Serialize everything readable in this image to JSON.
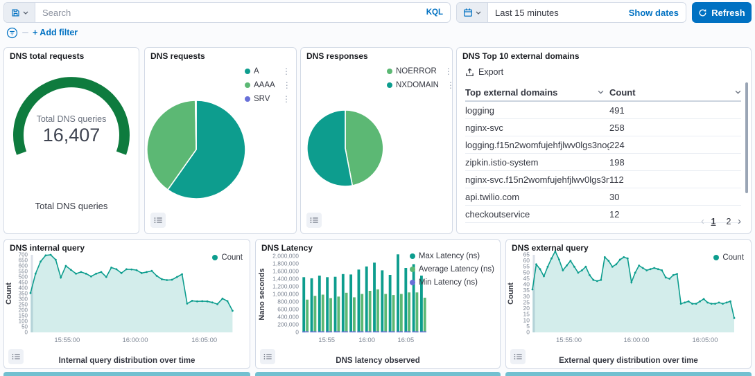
{
  "query_bar": {
    "search_placeholder": "Search",
    "kql_label": "KQL",
    "time_range": "Last 15 minutes",
    "show_dates_label": "Show dates",
    "refresh_label": "Refresh"
  },
  "filter_bar": {
    "add_filter_label": "+ Add filter"
  },
  "colors": {
    "teal": "#0d9d8e",
    "green": "#5cb874",
    "indigo": "#6870d8",
    "gauge_green": "#0e7b3e",
    "blue": "#0071c2",
    "axis_text": "#7d8694"
  },
  "chart_data": [
    {
      "type": "gauge",
      "title": "DNS total requests",
      "label": "Total DNS queries",
      "value": 16407,
      "value_display": "16,407",
      "bottom_label": "Total DNS queries",
      "color": "#0e7b3e",
      "fraction": 1.0
    },
    {
      "type": "pie",
      "title": "DNS requests",
      "slices": [
        {
          "label": "A",
          "value": 59.8,
          "color": "#0d9d8e"
        },
        {
          "label": "AAAA",
          "value": 39.9,
          "color": "#5cb874"
        },
        {
          "label": "SRV",
          "value": 0.3,
          "color": "#6870d8"
        }
      ]
    },
    {
      "type": "pie",
      "title": "DNS responses",
      "slices": [
        {
          "label": "NOERROR",
          "value": 47,
          "color": "#5cb874"
        },
        {
          "label": "NXDOMAIN",
          "value": 53,
          "color": "#0d9d8e"
        }
      ]
    },
    {
      "type": "table",
      "title": "DNS Top 10 external domains",
      "export_label": "Export",
      "columns": [
        "Top external domains",
        "Count"
      ],
      "rows": [
        [
          "logging",
          "491"
        ],
        [
          "nginx-svc",
          "258"
        ],
        [
          "logging.f15n2womfujehfjlwv0lgs3nog....",
          "224"
        ],
        [
          "zipkin.istio-system",
          "198"
        ],
        [
          "nginx-svc.f15n2womfujehfjlwv0lgs3no...",
          "112"
        ],
        [
          "api.twilio.com",
          "30"
        ],
        [
          "checkoutservice",
          "12"
        ]
      ],
      "pages": [
        "1",
        "2"
      ],
      "active_page": "1"
    },
    {
      "type": "area",
      "title": "DNS internal query",
      "ylabel": "Count",
      "xlabel": "Internal query distribution over time",
      "legend": [
        {
          "label": "Count",
          "color": "#0d9d8e"
        }
      ],
      "ylim": [
        0,
        700
      ],
      "ytick_step": 50,
      "xticks": [
        {
          "label": "15:55:00",
          "pos": 0.175
        },
        {
          "label": "16:00:00",
          "pos": 0.5
        },
        {
          "label": "16:05:00",
          "pos": 0.83
        }
      ],
      "values": [
        355,
        530,
        640,
        695,
        700,
        655,
        495,
        600,
        565,
        530,
        545,
        530,
        505,
        530,
        545,
        500,
        585,
        570,
        535,
        570,
        568,
        562,
        535,
        545,
        555,
        510,
        480,
        472,
        475,
        500,
        525,
        260,
        285,
        280,
        282,
        280,
        270,
        255,
        305,
        282,
        195
      ]
    },
    {
      "type": "bar",
      "title": "DNS Latency",
      "ylabel": "Nano seconds",
      "xlabel": "DNS latency observed",
      "ylim": [
        0,
        2000000
      ],
      "ytick_step": 200000,
      "xticks": [
        {
          "label": "15:55",
          "pos": 0.2
        },
        {
          "label": "16:00",
          "pos": 0.52
        },
        {
          "label": "16:05",
          "pos": 0.83
        }
      ],
      "series": [
        {
          "name": "Max Latency (ns)",
          "color": "#0d9d8e",
          "values": [
            1450000,
            1420000,
            1490000,
            1450000,
            1460000,
            1530000,
            1520000,
            1650000,
            1730000,
            1830000,
            1630000,
            1510000,
            2050000,
            1690000,
            1790000,
            1490000
          ]
        },
        {
          "name": "Average Latency (ns)",
          "color": "#5cb874",
          "values": [
            860000,
            960000,
            990000,
            900000,
            940000,
            1040000,
            920000,
            1010000,
            1090000,
            1130000,
            1010000,
            980000,
            1010000,
            1050000,
            1050000,
            910000
          ]
        },
        {
          "name": "Min Latency (ns)",
          "color": "#6870d8",
          "values": [
            15000,
            15000,
            15000,
            15000,
            15000,
            15000,
            15000,
            15000,
            15000,
            15000,
            15000,
            15000,
            15000,
            15000,
            15000,
            15000
          ]
        }
      ]
    },
    {
      "type": "area",
      "title": "DNS external query",
      "ylabel": "Count",
      "xlabel": "External query distribution over time",
      "legend": [
        {
          "label": "Count",
          "color": "#0d9d8e"
        }
      ],
      "ylim": [
        0,
        65
      ],
      "ytick_step": 5,
      "xticks": [
        {
          "label": "15:55:00",
          "pos": 0.175
        },
        {
          "label": "16:00:00",
          "pos": 0.5
        },
        {
          "label": "16:05:00",
          "pos": 0.83
        }
      ],
      "values": [
        36,
        57,
        53,
        47,
        55,
        62,
        68,
        61,
        52,
        56,
        60,
        55,
        50,
        52,
        55,
        48,
        44,
        43,
        44,
        63,
        60,
        55,
        57,
        61,
        63,
        62,
        42,
        50,
        56,
        54,
        52,
        53,
        54,
        53,
        52,
        46,
        45,
        48,
        49,
        24,
        25,
        26,
        24,
        24,
        26,
        28,
        25,
        24,
        24,
        25,
        24,
        25,
        26,
        12
      ]
    }
  ]
}
